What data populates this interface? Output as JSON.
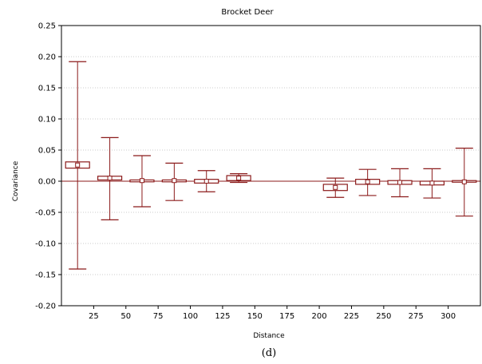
{
  "chart_data": {
    "type": "boxplot",
    "title": "Brocket Deer",
    "xlabel": "Distance",
    "ylabel": "Covariance",
    "caption": "(d)",
    "ylim": [
      -0.2,
      0.25
    ],
    "xlim": [
      0,
      325
    ],
    "yticks": [
      "-0.20",
      "-0.15",
      "-0.10",
      "-0.05",
      "0.00",
      "0.05",
      "0.10",
      "0.15",
      "0.20",
      "0.25"
    ],
    "xticks": [
      "25",
      "50",
      "75",
      "100",
      "125",
      "150",
      "175",
      "200",
      "225",
      "250",
      "275",
      "300"
    ],
    "grid": true,
    "reference_line": 0.0,
    "colors": {
      "series": "#8b1a1a",
      "grid": "#bbbbbb"
    },
    "boxes": [
      {
        "x": 12.5,
        "mean": 0.026,
        "box_low": 0.021,
        "box_high": 0.031,
        "whisker_low": -0.141,
        "whisker_high": 0.192
      },
      {
        "x": 37.5,
        "mean": 0.005,
        "box_low": 0.002,
        "box_high": 0.008,
        "whisker_low": -0.062,
        "whisker_high": 0.07
      },
      {
        "x": 62.5,
        "mean": 0.001,
        "box_low": -0.001,
        "box_high": 0.002,
        "whisker_low": -0.041,
        "whisker_high": 0.041
      },
      {
        "x": 87.5,
        "mean": 0.001,
        "box_low": -0.001,
        "box_high": 0.002,
        "whisker_low": -0.031,
        "whisker_high": 0.029
      },
      {
        "x": 112.5,
        "mean": 0.0,
        "box_low": -0.003,
        "box_high": 0.003,
        "whisker_low": -0.017,
        "whisker_high": 0.017
      },
      {
        "x": 137.5,
        "mean": 0.005,
        "box_low": 0.001,
        "box_high": 0.009,
        "whisker_low": -0.002,
        "whisker_high": 0.012
      },
      {
        "x": 212.5,
        "mean": -0.01,
        "box_low": -0.015,
        "box_high": -0.005,
        "whisker_low": -0.026,
        "whisker_high": 0.005
      },
      {
        "x": 237.5,
        "mean": -0.001,
        "box_low": -0.005,
        "box_high": 0.003,
        "whisker_low": -0.023,
        "whisker_high": 0.019
      },
      {
        "x": 262.5,
        "mean": -0.002,
        "box_low": -0.005,
        "box_high": 0.001,
        "whisker_low": -0.025,
        "whisker_high": 0.02
      },
      {
        "x": 287.5,
        "mean": -0.003,
        "box_low": -0.006,
        "box_high": 0.0,
        "whisker_low": -0.027,
        "whisker_high": 0.02
      },
      {
        "x": 312.5,
        "mean": -0.001,
        "box_low": -0.001,
        "box_high": 0.001,
        "whisker_low": -0.056,
        "whisker_high": 0.053
      }
    ]
  }
}
